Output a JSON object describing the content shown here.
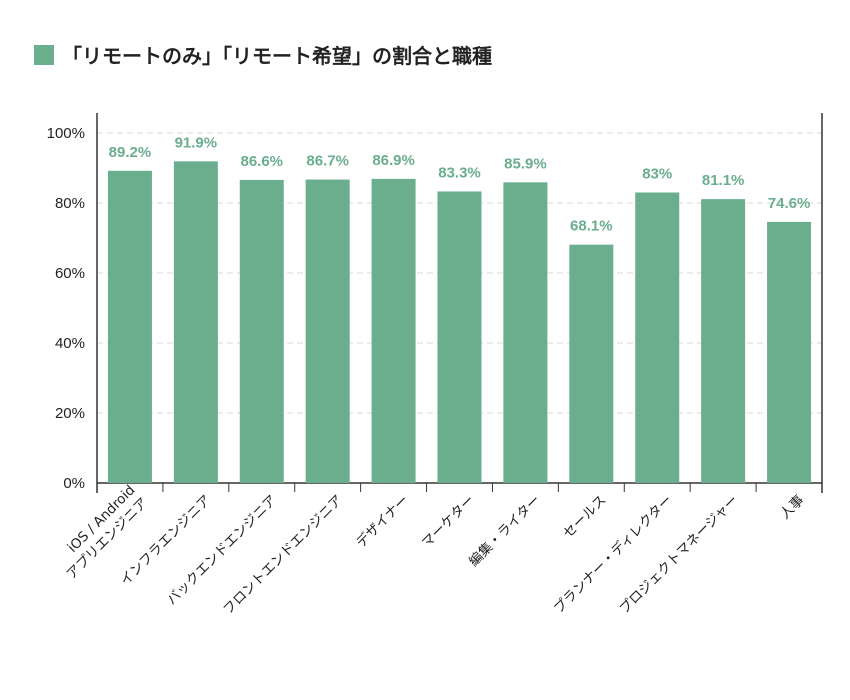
{
  "legend": {
    "title": "「リモートのみ」「リモート希望」の割合と職種",
    "color": "#6aae8e"
  },
  "chart_data": {
    "type": "bar",
    "title": "「リモートのみ」「リモート希望」の割合と職種",
    "categories": [
      [
        "iOS / Android",
        "アプリエンジニア"
      ],
      [
        "インフラエンジニア"
      ],
      [
        "バックエンドエンジニア"
      ],
      [
        "フロントエンドエンジニア"
      ],
      [
        "デザイナー"
      ],
      [
        "マーケター"
      ],
      [
        "編集・ライター"
      ],
      [
        "セールス"
      ],
      [
        "プランナー・ディレクター"
      ],
      [
        "プロジェクトマネージャー"
      ],
      [
        "人事"
      ]
    ],
    "values": [
      89.2,
      91.9,
      86.6,
      86.7,
      86.9,
      83.3,
      85.9,
      68.1,
      83,
      81.1,
      74.6
    ],
    "value_labels": [
      "89.2%",
      "91.9%",
      "86.6%",
      "86.7%",
      "86.9%",
      "83.3%",
      "85.9%",
      "68.1%",
      "83%",
      "81.1%",
      "74.6%"
    ],
    "yticks": [
      0,
      20,
      40,
      60,
      80,
      100
    ],
    "ytick_labels": [
      "0%",
      "20%",
      "40%",
      "60%",
      "80%",
      "100%"
    ],
    "ylim": [
      0,
      100
    ],
    "xlabel": "",
    "ylabel": "",
    "grid": true,
    "bar_color": "#6aae8e",
    "label_color": "#6aae8e",
    "grid_color": "#d8d8d8",
    "axis_color": "#333333"
  }
}
